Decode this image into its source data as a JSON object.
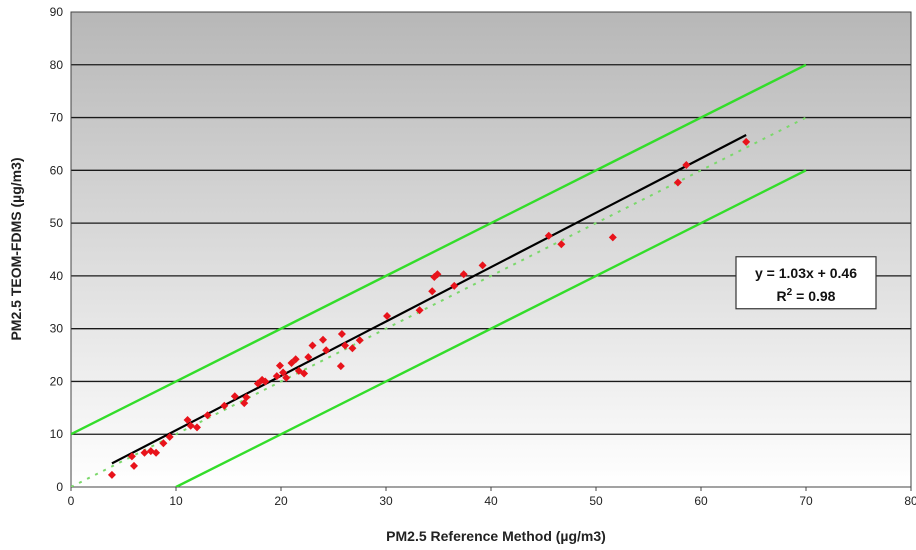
{
  "chart_data": {
    "type": "scatter",
    "title": "",
    "xlabel": "PM2.5 Reference Method (µg/m3)",
    "ylabel": "PM2.5 TEOM-FDMS (µg/m3)",
    "xlim": [
      0,
      80
    ],
    "ylim": [
      0,
      90
    ],
    "xticks": [
      "0",
      "10",
      "20",
      "30",
      "40",
      "50",
      "60",
      "70",
      "80"
    ],
    "yticks": [
      "0",
      "10",
      "20",
      "30",
      "40",
      "50",
      "60",
      "70",
      "80",
      "90"
    ],
    "grid": true,
    "background": "gray gradient",
    "points": [
      {
        "x": 3.9,
        "y": 2.3
      },
      {
        "x": 5.8,
        "y": 5.8
      },
      {
        "x": 6.0,
        "y": 4.0
      },
      {
        "x": 7.0,
        "y": 6.5
      },
      {
        "x": 7.6,
        "y": 6.8
      },
      {
        "x": 8.1,
        "y": 6.5
      },
      {
        "x": 8.8,
        "y": 8.3
      },
      {
        "x": 9.4,
        "y": 9.5
      },
      {
        "x": 11.1,
        "y": 12.7
      },
      {
        "x": 11.4,
        "y": 11.6
      },
      {
        "x": 12.0,
        "y": 11.3
      },
      {
        "x": 13.0,
        "y": 13.6
      },
      {
        "x": 14.6,
        "y": 15.4
      },
      {
        "x": 15.6,
        "y": 17.2
      },
      {
        "x": 16.5,
        "y": 15.9
      },
      {
        "x": 16.7,
        "y": 17.0
      },
      {
        "x": 17.8,
        "y": 19.6
      },
      {
        "x": 18.2,
        "y": 20.3
      },
      {
        "x": 18.5,
        "y": 20.0
      },
      {
        "x": 19.6,
        "y": 21.0
      },
      {
        "x": 19.9,
        "y": 23.0
      },
      {
        "x": 20.2,
        "y": 21.7
      },
      {
        "x": 20.5,
        "y": 20.7
      },
      {
        "x": 21.0,
        "y": 23.5
      },
      {
        "x": 21.4,
        "y": 24.2
      },
      {
        "x": 21.7,
        "y": 22.0
      },
      {
        "x": 22.2,
        "y": 21.5
      },
      {
        "x": 22.6,
        "y": 24.6
      },
      {
        "x": 23.0,
        "y": 26.8
      },
      {
        "x": 24.0,
        "y": 27.9
      },
      {
        "x": 24.3,
        "y": 25.9
      },
      {
        "x": 25.8,
        "y": 29.0
      },
      {
        "x": 25.7,
        "y": 22.9
      },
      {
        "x": 26.1,
        "y": 26.8
      },
      {
        "x": 26.8,
        "y": 26.3
      },
      {
        "x": 27.5,
        "y": 27.8
      },
      {
        "x": 30.1,
        "y": 32.4
      },
      {
        "x": 33.2,
        "y": 33.5
      },
      {
        "x": 34.4,
        "y": 37.1
      },
      {
        "x": 34.6,
        "y": 39.8
      },
      {
        "x": 34.9,
        "y": 40.3
      },
      {
        "x": 36.5,
        "y": 38.1
      },
      {
        "x": 37.4,
        "y": 40.3
      },
      {
        "x": 39.2,
        "y": 42.0
      },
      {
        "x": 45.5,
        "y": 47.6
      },
      {
        "x": 46.7,
        "y": 46.0
      },
      {
        "x": 51.6,
        "y": 47.3
      },
      {
        "x": 57.8,
        "y": 57.7
      },
      {
        "x": 58.6,
        "y": 61.0
      },
      {
        "x": 64.3,
        "y": 65.4
      }
    ],
    "regression": {
      "slope": 1.03,
      "intercept": 0.46,
      "x_range": [
        3.9,
        64.3
      ],
      "color": "#000000"
    },
    "one_to_one": {
      "x_range": [
        0,
        70
      ],
      "color": "#7bd86b",
      "style": "dotted"
    },
    "bounds": [
      {
        "x_range": [
          0,
          70
        ],
        "offset": 10,
        "color": "#33dd2a"
      },
      {
        "x_range": [
          10,
          70
        ],
        "offset": -10,
        "color": "#33dd2a"
      }
    ],
    "point_color": "#e8131b",
    "annotation": {
      "line1": "y = 1.03x + 0.46",
      "line2_base": "R",
      "line2_sup": "2",
      "line2_rest": " = 0.98",
      "anchor_x": 70,
      "anchor_y": 38.7
    }
  }
}
